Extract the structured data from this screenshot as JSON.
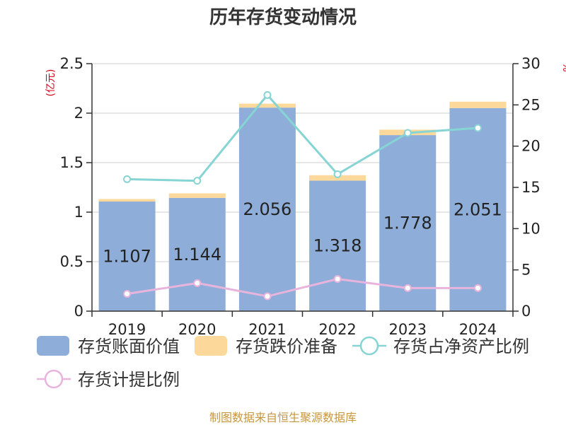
{
  "title": "历年存货变动情况",
  "source": "制图数据来自恒生聚源数据库",
  "colors": {
    "book_value": "#8eaed9",
    "impairment": "#fcd89a",
    "ratio_net_assets": "#86d4d4",
    "ratio_provision": "#e8b4dc",
    "axis": "#333333",
    "grid": "#cfcfcf",
    "unit_label": "#d0021b"
  },
  "chart_data": {
    "type": "bar",
    "title": "历年存货变动情况",
    "categories": [
      "2019",
      "2020",
      "2021",
      "2022",
      "2023",
      "2024"
    ],
    "ylabel": "(亿元)",
    "ylabel_right": "%",
    "ylim": [
      0,
      2.5
    ],
    "yticks": [
      "0",
      "0.5",
      "1",
      "1.5",
      "2",
      "2.5"
    ],
    "ylim_right": [
      0,
      30
    ],
    "yticks_right": [
      "0",
      "5",
      "10",
      "15",
      "20",
      "25",
      "30"
    ],
    "grid": true,
    "legend_position": "bottom",
    "series": [
      {
        "name": "存货账面价值",
        "kind": "bar",
        "values": [
          1.107,
          1.144,
          2.056,
          1.318,
          1.778,
          2.051
        ],
        "labels": [
          "1.107",
          "1.144",
          "2.056",
          "1.318",
          "1.778",
          "2.051"
        ]
      },
      {
        "name": "存货跌价准备",
        "kind": "bar-stacked",
        "values": [
          0.025,
          0.045,
          0.04,
          0.055,
          0.055,
          0.065
        ]
      },
      {
        "name": "存货占净资产比例",
        "kind": "line",
        "axis": "right",
        "values": [
          16.0,
          15.8,
          26.2,
          16.6,
          21.6,
          22.2
        ]
      },
      {
        "name": "存货计提比例",
        "kind": "line",
        "axis": "right",
        "values": [
          2.1,
          3.4,
          1.8,
          3.9,
          2.8,
          2.8
        ]
      }
    ]
  }
}
